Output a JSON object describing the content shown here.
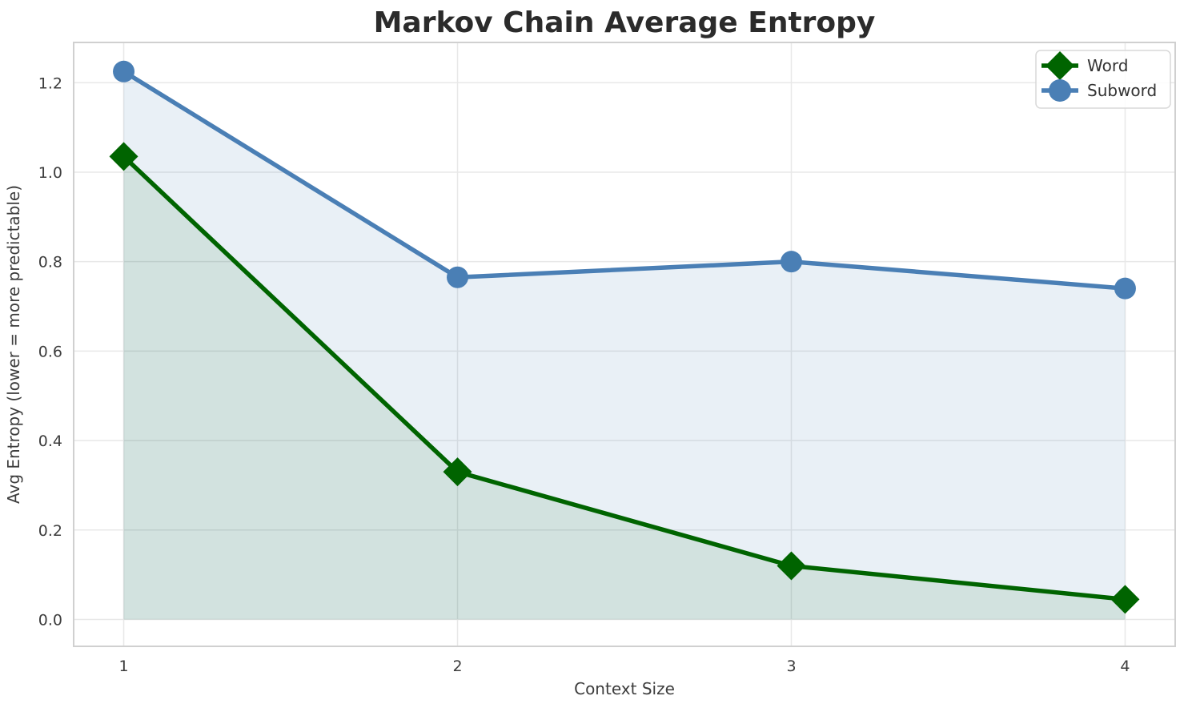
{
  "figure": {
    "title": "Markov Chain Average Entropy",
    "xlabel": "Context Size",
    "ylabel": "Avg Entropy (lower = more predictable)"
  },
  "legend": {
    "position": "upper right",
    "items": [
      {
        "label": "Word",
        "marker": "diamond-marker"
      },
      {
        "label": "Subword",
        "marker": "circle-marker"
      }
    ]
  },
  "chart_data": {
    "type": "line",
    "title": "Markov Chain Average Entropy",
    "xlabel": "Context Size",
    "ylabel": "Avg Entropy (lower = more predictable)",
    "x": [
      1,
      2,
      3,
      4
    ],
    "series": [
      {
        "name": "Word",
        "values": [
          1.035,
          0.33,
          0.12,
          0.045
        ],
        "color": "#006400",
        "marker": "diamond",
        "fill": "rgba(0,100,0,0.10)"
      },
      {
        "name": "Subword",
        "values": [
          1.225,
          0.765,
          0.8,
          0.74
        ],
        "color": "#4a7fb5",
        "marker": "circle",
        "fill": "rgba(70,130,180,0.12)"
      }
    ],
    "xticks": [
      1,
      2,
      3,
      4
    ],
    "yticks": [
      0.0,
      0.2,
      0.4,
      0.6,
      0.8,
      1.0,
      1.2
    ],
    "ytick_labels": [
      "0.0",
      "0.2",
      "0.4",
      "0.6",
      "0.8",
      "1.0",
      "1.2"
    ],
    "xlim": [
      0.85,
      4.15
    ],
    "ylim": [
      -0.06,
      1.29
    ],
    "grid": true,
    "grid_color": "#e8e8e8",
    "spine_color": "#d0d0d0",
    "area_fill": true,
    "fill_baseline": 0,
    "legend_position": "upper right"
  }
}
